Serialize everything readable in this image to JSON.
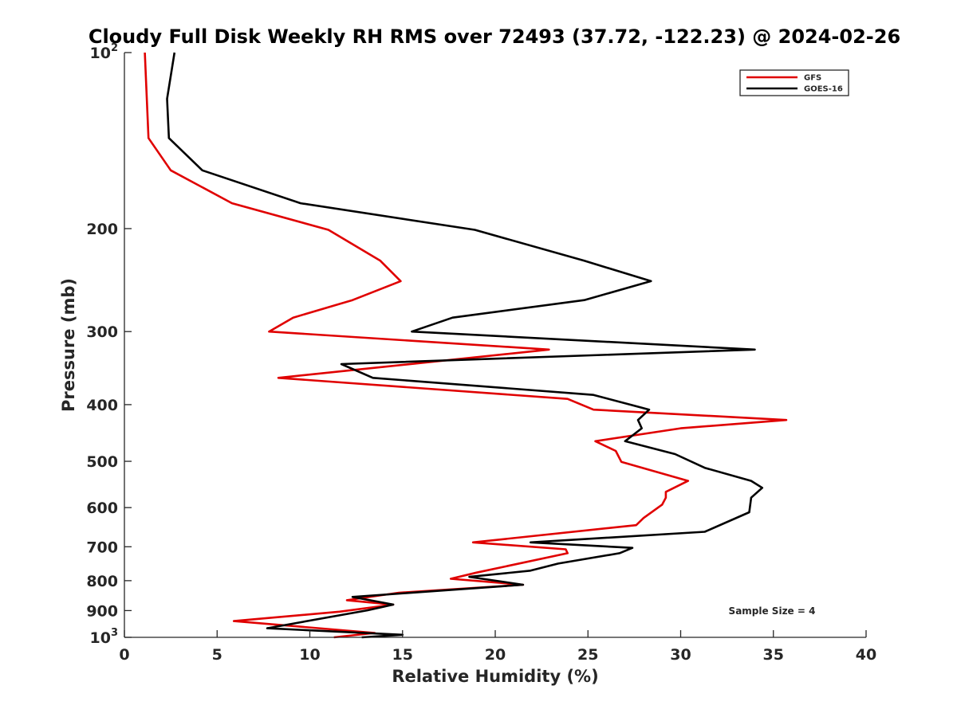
{
  "chart_data": {
    "type": "line",
    "title": "Cloudy Full Disk Weekly RH RMS over 72493 (37.72, -122.23) @ 2024-02-26",
    "xlabel": "Relative Humidity (%)",
    "ylabel": "Pressure (mb)",
    "xlim": [
      0,
      40
    ],
    "ylim": [
      100,
      1000
    ],
    "y_scale": "log",
    "y_reversed": true,
    "grid": false,
    "x_ticks": [
      "0",
      "5",
      "10",
      "15",
      "20",
      "25",
      "30",
      "35",
      "40"
    ],
    "y_ticks": [
      {
        "value": 100,
        "base": "10",
        "exp": "2"
      },
      {
        "value": 200,
        "label": "200"
      },
      {
        "value": 300,
        "label": "300"
      },
      {
        "value": 400,
        "label": "400"
      },
      {
        "value": 500,
        "label": "500"
      },
      {
        "value": 600,
        "label": "600"
      },
      {
        "value": 700,
        "label": "700"
      },
      {
        "value": 800,
        "label": "800"
      },
      {
        "value": 900,
        "label": "900"
      },
      {
        "value": 1000,
        "base": "10",
        "exp": "3"
      }
    ],
    "annotation": "Sample Size = 4",
    "legend_position": "top-right",
    "series": [
      {
        "name": "GFS",
        "color": "#e00000",
        "points": [
          [
            1.1,
            100
          ],
          [
            1.3,
            140
          ],
          [
            2.5,
            159
          ],
          [
            5.8,
            181
          ],
          [
            11.0,
            201
          ],
          [
            13.8,
            227
          ],
          [
            14.9,
            246
          ],
          [
            12.3,
            265
          ],
          [
            9.1,
            284
          ],
          [
            7.8,
            300
          ],
          [
            22.9,
            322
          ],
          [
            8.3,
            360
          ],
          [
            23.9,
            391
          ],
          [
            25.3,
            408
          ],
          [
            35.7,
            425
          ],
          [
            30.0,
            439
          ],
          [
            25.4,
            462
          ],
          [
            26.5,
            480
          ],
          [
            26.8,
            501
          ],
          [
            30.4,
            540
          ],
          [
            29.2,
            564
          ],
          [
            29.2,
            577
          ],
          [
            29.0,
            593
          ],
          [
            28.0,
            625
          ],
          [
            27.6,
            643
          ],
          [
            18.8,
            688
          ],
          [
            23.8,
            707
          ],
          [
            23.9,
            718
          ],
          [
            19.0,
            775
          ],
          [
            17.6,
            794
          ],
          [
            21.5,
            813
          ],
          [
            14.8,
            839
          ],
          [
            12.0,
            864
          ],
          [
            14.5,
            879
          ],
          [
            11.6,
            904
          ],
          [
            5.9,
            938
          ],
          [
            13.5,
            983
          ],
          [
            11.3,
            1000
          ]
        ]
      },
      {
        "name": "GOES-16",
        "color": "#000000",
        "points": [
          [
            2.7,
            100
          ],
          [
            2.3,
            120
          ],
          [
            2.4,
            140
          ],
          [
            4.2,
            159
          ],
          [
            9.5,
            181
          ],
          [
            18.9,
            201
          ],
          [
            24.8,
            227
          ],
          [
            28.4,
            246
          ],
          [
            24.8,
            265
          ],
          [
            17.7,
            284
          ],
          [
            15.5,
            300
          ],
          [
            34.0,
            322
          ],
          [
            11.7,
            341
          ],
          [
            13.4,
            360
          ],
          [
            25.3,
            385
          ],
          [
            28.3,
            408
          ],
          [
            27.7,
            425
          ],
          [
            27.9,
            439
          ],
          [
            27.0,
            462
          ],
          [
            29.7,
            486
          ],
          [
            31.3,
            513
          ],
          [
            33.8,
            540
          ],
          [
            34.4,
            555
          ],
          [
            33.8,
            577
          ],
          [
            33.7,
            611
          ],
          [
            31.3,
            660
          ],
          [
            21.9,
            688
          ],
          [
            27.4,
            703
          ],
          [
            26.7,
            718
          ],
          [
            23.4,
            748
          ],
          [
            21.9,
            769
          ],
          [
            18.6,
            788
          ],
          [
            21.5,
            813
          ],
          [
            12.3,
            853
          ],
          [
            14.5,
            879
          ],
          [
            13.1,
            899
          ],
          [
            7.7,
            965
          ],
          [
            15.0,
            990
          ],
          [
            12.8,
            1000
          ]
        ]
      }
    ]
  }
}
